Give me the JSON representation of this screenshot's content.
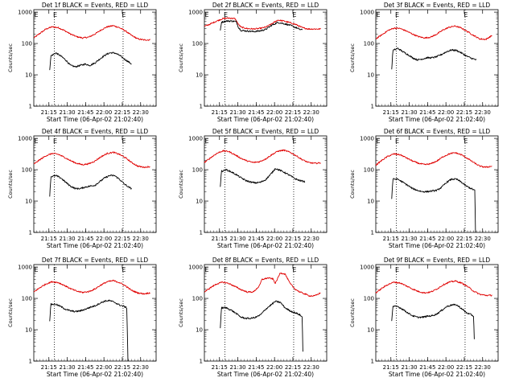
{
  "figure": {
    "xtick_labels": [
      "21:15",
      "21:30",
      "21:45",
      "22:00",
      "22:15",
      "22:30"
    ],
    "xtick_minutes": [
      12.33,
      27.33,
      42.33,
      57.33,
      72.33,
      87.33
    ],
    "xlabel": "Start Time (06-Apr-02 21:02:40)",
    "ylabel": "Counts/sec",
    "ytick_labels": [
      "1",
      "10",
      "100",
      "1000"
    ],
    "ytick_values": [
      1,
      10,
      100,
      1000
    ],
    "ylim": [
      1,
      1200
    ],
    "xlim_minutes": [
      0,
      100
    ],
    "marker_minutes": [
      16.8,
      73.0
    ],
    "marker_labels": [
      "E",
      "E"
    ],
    "colors": {
      "events": "#000000",
      "lld": "#e00000"
    }
  },
  "chart_data": [
    {
      "type": "line",
      "title": "Det 1f BLACK = Events, RED = LLD",
      "xlabel": "Start Time (06-Apr-02 21:02:40)",
      "ylabel": "Counts/sec",
      "series": [
        {
          "name": "LLD (red)",
          "x": [
            0,
            5,
            10,
            15,
            20,
            25,
            30,
            35,
            40,
            45,
            50,
            55,
            60,
            65,
            70,
            75,
            80,
            85,
            90,
            95
          ],
          "values": [
            150,
            210,
            290,
            340,
            320,
            260,
            200,
            165,
            150,
            160,
            200,
            270,
            340,
            370,
            320,
            250,
            180,
            140,
            130,
            130
          ]
        },
        {
          "name": "Events (black)",
          "x": [
            13,
            14,
            18,
            22,
            26,
            30,
            34,
            38,
            42,
            46,
            50,
            54,
            58,
            62,
            66,
            70,
            74,
            78,
            80
          ],
          "values": [
            15,
            40,
            50,
            40,
            30,
            20,
            18,
            20,
            22,
            20,
            24,
            32,
            42,
            50,
            50,
            42,
            32,
            25,
            22
          ]
        }
      ]
    },
    {
      "type": "line",
      "title": "Det 2f BLACK = Events, RED = LLD",
      "xlabel": "Start Time (06-Apr-02 21:02:40)",
      "ylabel": "Counts/sec",
      "series": [
        {
          "name": "LLD (red)",
          "x": [
            0,
            5,
            10,
            15,
            20,
            25,
            28,
            30,
            35,
            40,
            45,
            50,
            55,
            60,
            65,
            70,
            75,
            80,
            85,
            90,
            95
          ],
          "values": [
            350,
            420,
            520,
            620,
            650,
            620,
            400,
            330,
            300,
            290,
            300,
            330,
            420,
            560,
            520,
            460,
            400,
            320,
            290,
            290,
            290
          ]
        },
        {
          "name": "Events (black)",
          "x": [
            13,
            14,
            18,
            22,
            26,
            28,
            30,
            35,
            40,
            45,
            50,
            55,
            60,
            65,
            70,
            75,
            78,
            80
          ],
          "values": [
            260,
            480,
            520,
            520,
            500,
            320,
            260,
            250,
            240,
            250,
            280,
            380,
            470,
            430,
            380,
            320,
            280,
            270
          ]
        }
      ]
    },
    {
      "type": "line",
      "title": "Det 3f BLACK = Events, RED = LLD",
      "xlabel": "Start Time (06-Apr-02 21:02:40)",
      "ylabel": "Counts/sec",
      "series": [
        {
          "name": "LLD (red)",
          "x": [
            0,
            5,
            10,
            15,
            20,
            25,
            30,
            35,
            40,
            45,
            50,
            55,
            60,
            65,
            70,
            75,
            80,
            85,
            90,
            95
          ],
          "values": [
            140,
            190,
            260,
            310,
            300,
            250,
            200,
            165,
            150,
            160,
            200,
            270,
            330,
            360,
            310,
            240,
            180,
            140,
            135,
            180
          ]
        },
        {
          "name": "Events (black)",
          "x": [
            13,
            14,
            18,
            22,
            26,
            30,
            34,
            38,
            42,
            46,
            50,
            54,
            58,
            62,
            66,
            70,
            74,
            78,
            82
          ],
          "values": [
            15,
            60,
            70,
            55,
            45,
            35,
            30,
            32,
            35,
            35,
            38,
            45,
            55,
            62,
            60,
            50,
            40,
            34,
            30
          ]
        }
      ]
    },
    {
      "type": "line",
      "title": "Det 4f BLACK = Events, RED = LLD",
      "xlabel": "Start Time (06-Apr-02 21:02:40)",
      "ylabel": "Counts/sec",
      "series": [
        {
          "name": "LLD (red)",
          "x": [
            0,
            5,
            10,
            15,
            20,
            25,
            30,
            35,
            40,
            45,
            50,
            55,
            60,
            65,
            70,
            75,
            80,
            85,
            90,
            95
          ],
          "values": [
            150,
            210,
            280,
            330,
            310,
            250,
            195,
            160,
            145,
            155,
            190,
            260,
            330,
            360,
            310,
            240,
            170,
            130,
            120,
            125
          ]
        },
        {
          "name": "Events (black)",
          "x": [
            13,
            14,
            18,
            22,
            26,
            30,
            34,
            38,
            42,
            46,
            50,
            54,
            58,
            62,
            66,
            70,
            74,
            78,
            80
          ],
          "values": [
            15,
            60,
            65,
            55,
            40,
            30,
            25,
            25,
            28,
            30,
            32,
            42,
            55,
            65,
            65,
            50,
            35,
            27,
            25
          ]
        }
      ]
    },
    {
      "type": "line",
      "title": "Det 5f BLACK = Events, RED = LLD",
      "xlabel": "Start Time (06-Apr-02 21:02:40)",
      "ylabel": "Counts/sec",
      "series": [
        {
          "name": "LLD (red)",
          "x": [
            0,
            5,
            10,
            15,
            20,
            25,
            30,
            35,
            40,
            45,
            50,
            55,
            60,
            65,
            70,
            75,
            80,
            85,
            90,
            95
          ],
          "values": [
            170,
            240,
            330,
            400,
            380,
            300,
            230,
            190,
            170,
            180,
            220,
            300,
            390,
            420,
            360,
            280,
            210,
            170,
            160,
            165
          ]
        },
        {
          "name": "Events (black)",
          "x": [
            13,
            14,
            18,
            22,
            26,
            30,
            34,
            38,
            42,
            46,
            50,
            54,
            58,
            62,
            66,
            70,
            74,
            78,
            82
          ],
          "values": [
            30,
            90,
            100,
            85,
            70,
            55,
            45,
            40,
            38,
            40,
            48,
            70,
            110,
            95,
            80,
            65,
            52,
            45,
            42
          ]
        }
      ]
    },
    {
      "type": "line",
      "title": "Det 6f BLACK = Events, RED = LLD",
      "xlabel": "Start Time (06-Apr-02 21:02:40)",
      "ylabel": "Counts/sec",
      "series": [
        {
          "name": "LLD (red)",
          "x": [
            0,
            5,
            10,
            15,
            20,
            25,
            30,
            35,
            40,
            45,
            50,
            55,
            60,
            65,
            70,
            75,
            80,
            85,
            90,
            95
          ],
          "values": [
            140,
            200,
            270,
            320,
            300,
            240,
            190,
            160,
            145,
            155,
            190,
            260,
            320,
            350,
            300,
            230,
            170,
            130,
            120,
            130
          ]
        },
        {
          "name": "Events (black)",
          "x": [
            13,
            14,
            18,
            22,
            26,
            30,
            34,
            38,
            42,
            46,
            50,
            54,
            58,
            62,
            66,
            70,
            74,
            78,
            81,
            81.5
          ],
          "values": [
            12,
            50,
            50,
            40,
            32,
            25,
            22,
            20,
            20,
            21,
            22,
            28,
            40,
            50,
            50,
            40,
            30,
            25,
            22,
            1
          ]
        }
      ]
    },
    {
      "type": "line",
      "title": "Det 7f BLACK = Events, RED = LLD",
      "xlabel": "Start Time (06-Apr-02 21:02:40)",
      "ylabel": "Counts/sec",
      "series": [
        {
          "name": "LLD (red)",
          "x": [
            0,
            5,
            10,
            15,
            20,
            25,
            30,
            35,
            40,
            45,
            50,
            55,
            60,
            65,
            70,
            75,
            80,
            85,
            90,
            95
          ],
          "values": [
            160,
            220,
            290,
            340,
            320,
            260,
            205,
            170,
            155,
            165,
            200,
            270,
            340,
            370,
            320,
            250,
            180,
            150,
            140,
            150
          ]
        },
        {
          "name": "Events (black)",
          "x": [
            13,
            14,
            18,
            22,
            26,
            30,
            34,
            38,
            42,
            46,
            50,
            54,
            58,
            62,
            66,
            70,
            74,
            76,
            77
          ],
          "values": [
            20,
            65,
            65,
            55,
            45,
            40,
            38,
            40,
            45,
            52,
            58,
            70,
            82,
            85,
            75,
            62,
            55,
            50,
            1
          ]
        }
      ]
    },
    {
      "type": "line",
      "title": "Det 8f BLACK = Events, RED = LLD",
      "xlabel": "Start Time (06-Apr-02 21:02:40)",
      "ylabel": "Counts/sec",
      "series": [
        {
          "name": "LLD (red)",
          "x": [
            0,
            5,
            10,
            15,
            20,
            25,
            30,
            35,
            40,
            45,
            47,
            52,
            56,
            58,
            62,
            66,
            70,
            74,
            78,
            82,
            86,
            90,
            95
          ],
          "values": [
            160,
            220,
            290,
            330,
            300,
            240,
            190,
            160,
            160,
            250,
            400,
            450,
            420,
            300,
            650,
            600,
            300,
            200,
            160,
            140,
            120,
            120,
            150
          ]
        },
        {
          "name": "Events (black)",
          "x": [
            13,
            14,
            18,
            22,
            26,
            30,
            34,
            38,
            42,
            46,
            50,
            54,
            58,
            62,
            66,
            70,
            74,
            78,
            80,
            80.5
          ],
          "values": [
            12,
            50,
            50,
            42,
            33,
            25,
            23,
            23,
            25,
            30,
            45,
            60,
            80,
            75,
            50,
            40,
            35,
            30,
            25,
            2
          ]
        }
      ]
    },
    {
      "type": "line",
      "title": "Det 9f BLACK = Events, RED = LLD",
      "xlabel": "Start Time (06-Apr-02 21:02:40)",
      "ylabel": "Counts/sec",
      "series": [
        {
          "name": "LLD (red)",
          "x": [
            0,
            5,
            10,
            15,
            20,
            25,
            30,
            35,
            40,
            45,
            50,
            55,
            60,
            65,
            70,
            75,
            80,
            85,
            90,
            95
          ],
          "values": [
            150,
            210,
            280,
            330,
            310,
            250,
            200,
            165,
            150,
            160,
            200,
            270,
            330,
            360,
            310,
            240,
            170,
            135,
            125,
            125
          ]
        },
        {
          "name": "Events (black)",
          "x": [
            13,
            14,
            18,
            22,
            26,
            30,
            34,
            38,
            42,
            46,
            50,
            54,
            58,
            62,
            66,
            70,
            74,
            78,
            80,
            80.5
          ],
          "values": [
            20,
            55,
            55,
            45,
            35,
            28,
            25,
            25,
            27,
            28,
            32,
            42,
            55,
            62,
            62,
            48,
            35,
            30,
            27,
            5
          ]
        }
      ]
    }
  ]
}
